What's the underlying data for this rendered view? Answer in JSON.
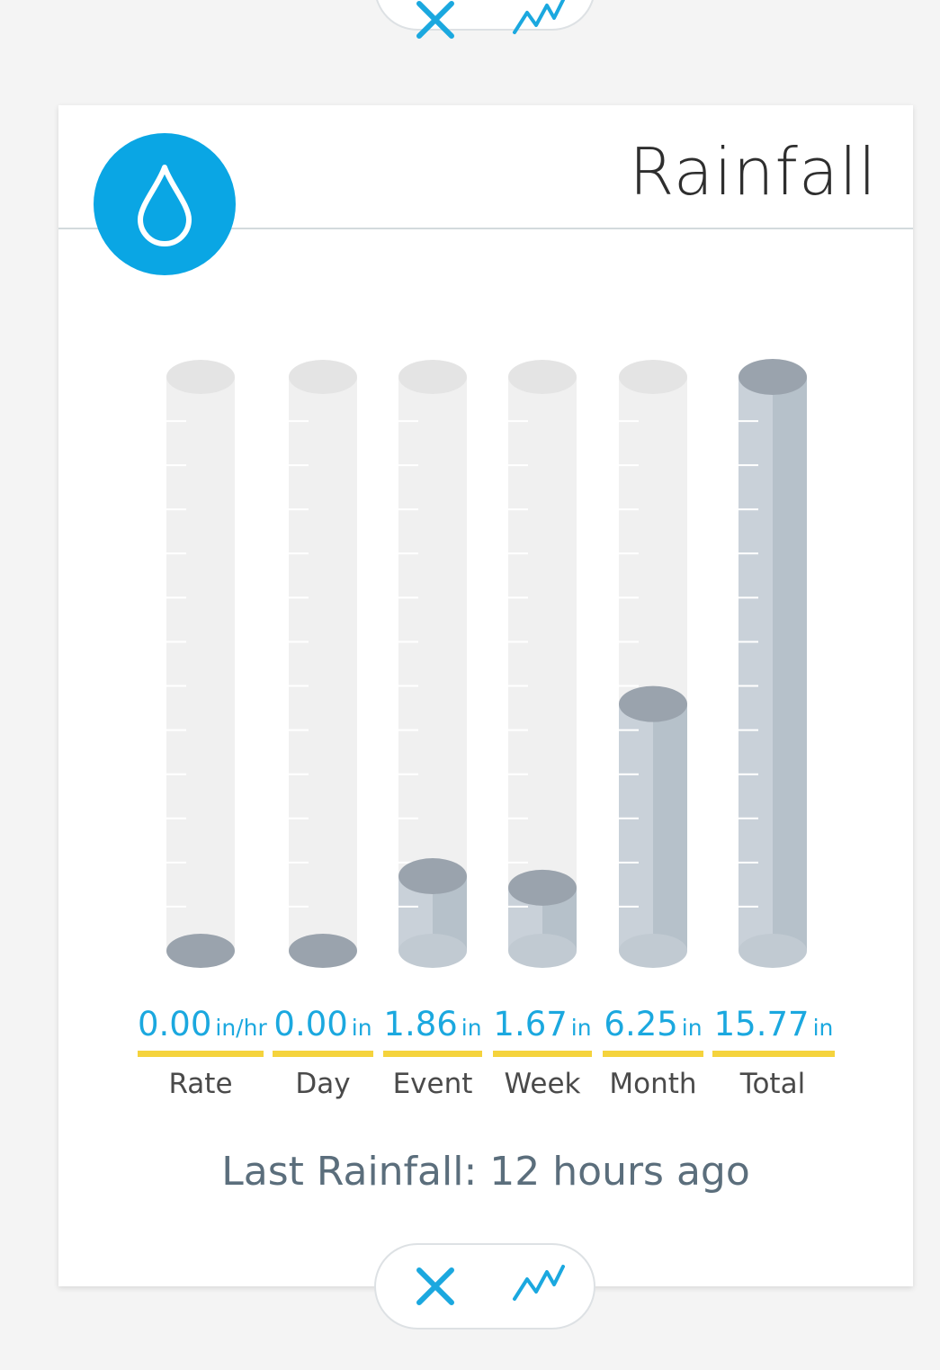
{
  "widget": {
    "title": "Rainfall",
    "icon": "water-drop-icon",
    "accent_color": "#0aa6e4",
    "value_color": "#1ba8df",
    "underline_color": "#f5d33d",
    "last_rainfall_label": "Last Rainfall:",
    "last_rainfall_value": "12 hours ago"
  },
  "actions": {
    "close_icon": "close-icon",
    "graph_icon": "line-graph-icon"
  },
  "chart_data": {
    "type": "bar",
    "categories": [
      "Rate",
      "Day",
      "Event",
      "Week",
      "Month",
      "Total"
    ],
    "values": [
      0.0,
      0.0,
      1.86,
      1.67,
      6.25,
      15.77
    ],
    "values_text": [
      "0.00",
      "0.00",
      "1.86",
      "1.67",
      "6.25",
      "15.77"
    ],
    "units": [
      "in/hr",
      "in",
      "in",
      "in",
      "in",
      "in"
    ],
    "fill_fraction": [
      0,
      0,
      0.13,
      0.11,
      0.43,
      1.0
    ],
    "fill_color": "#c9d1d9",
    "empty_color": "#f0f0f0"
  }
}
